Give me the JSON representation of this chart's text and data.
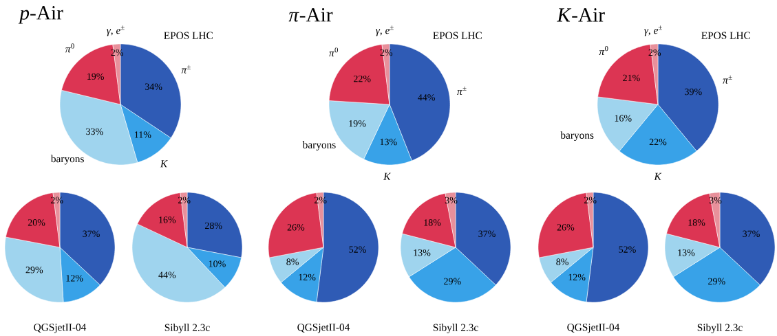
{
  "chart_data": [
    {
      "type": "pie",
      "title": "EPOS LHC",
      "annotations": [
        "*p*-Air"
      ],
      "categories": [
        "*π*$^{±}$",
        "*K*",
        "baryons",
        "*π*$^{0}$",
        "*γ*, *e*$^{±}$"
      ],
      "values": [
        34,
        11,
        33,
        19,
        2
      ],
      "value_labels": [
        "34%",
        "11%",
        "33%",
        "19%",
        "2%"
      ],
      "colors": [
        "#2f5bb5",
        "#38a2e8",
        "#9fd4ee",
        "#dc3553",
        "#e8909b"
      ]
    },
    {
      "type": "pie",
      "title": "EPOS LHC",
      "annotations": [
        "*π*-Air"
      ],
      "categories": [
        "*π*$^{±}$",
        "*K*",
        "baryons",
        "*π*$^{0}$",
        "*γ*, *e*$^{±}$"
      ],
      "values": [
        44,
        13,
        19,
        22,
        2
      ],
      "value_labels": [
        "44%",
        "13%",
        "19%",
        "22%",
        "2%"
      ],
      "colors": [
        "#2f5bb5",
        "#38a2e8",
        "#9fd4ee",
        "#dc3553",
        "#e8909b"
      ]
    },
    {
      "type": "pie",
      "title": "EPOS LHC",
      "annotations": [
        "*K*-Air"
      ],
      "categories": [
        "*π*$^{±}$",
        "*K*",
        "baryons",
        "*π*$^{0}$",
        "*γ*, *e*$^{±}$"
      ],
      "values": [
        39,
        22,
        16,
        21,
        2
      ],
      "value_labels": [
        "39%",
        "22%",
        "16%",
        "21%",
        "2%"
      ],
      "colors": [
        "#2f5bb5",
        "#38a2e8",
        "#9fd4ee",
        "#dc3553",
        "#e8909b"
      ]
    },
    {
      "type": "pie",
      "title": "QGSjetII-04",
      "categories": [
        null,
        null,
        null,
        null,
        null
      ],
      "values": [
        37,
        12,
        29,
        20,
        2
      ],
      "value_labels": [
        "37%",
        "12%",
        "29%",
        "20%",
        "2%"
      ],
      "colors": [
        "#2f5bb5",
        "#38a2e8",
        "#9fd4ee",
        "#dc3553",
        "#e8909b"
      ]
    },
    {
      "type": "pie",
      "title": "Sibyll 2.3c",
      "categories": [
        null,
        null,
        null,
        null,
        null
      ],
      "values": [
        28,
        10,
        44,
        16,
        2
      ],
      "value_labels": [
        "28%",
        "10%",
        "44%",
        "16%",
        "2%"
      ],
      "colors": [
        "#2f5bb5",
        "#38a2e8",
        "#9fd4ee",
        "#dc3553",
        "#e8909b"
      ]
    },
    {
      "type": "pie",
      "title": "QGSjetII-04",
      "categories": [
        null,
        null,
        null,
        null,
        null
      ],
      "values": [
        52,
        12,
        8,
        26,
        2
      ],
      "value_labels": [
        "52%",
        "12%",
        "8%",
        "26%",
        "2%"
      ],
      "colors": [
        "#2f5bb5",
        "#38a2e8",
        "#9fd4ee",
        "#dc3553",
        "#e8909b"
      ]
    },
    {
      "type": "pie",
      "title": "Sibyll 2.3c",
      "categories": [
        null,
        null,
        null,
        null,
        null
      ],
      "values": [
        37,
        29,
        13,
        18,
        3
      ],
      "value_labels": [
        "37%",
        "29%",
        "13%",
        "18%",
        "3%"
      ],
      "colors": [
        "#2f5bb5",
        "#38a2e8",
        "#9fd4ee",
        "#dc3553",
        "#e8909b"
      ]
    },
    {
      "type": "pie",
      "title": "QGSjetII-04",
      "categories": [
        null,
        null,
        null,
        null,
        null
      ],
      "values": [
        52,
        12,
        8,
        26,
        2
      ],
      "value_labels": [
        "52%",
        "12%",
        "8%",
        "26%",
        "2%"
      ],
      "colors": [
        "#2f5bb5",
        "#38a2e8",
        "#9fd4ee",
        "#dc3553",
        "#e8909b"
      ]
    },
    {
      "type": "pie",
      "title": "Sibyll 2.3c",
      "categories": [
        null,
        null,
        null,
        null,
        null
      ],
      "values": [
        37,
        29,
        13,
        18,
        3
      ],
      "value_labels": [
        "37%",
        "29%",
        "13%",
        "18%",
        "3%"
      ],
      "colors": [
        "#2f5bb5",
        "#38a2e8",
        "#9fd4ee",
        "#dc3553",
        "#e8909b"
      ]
    }
  ]
}
